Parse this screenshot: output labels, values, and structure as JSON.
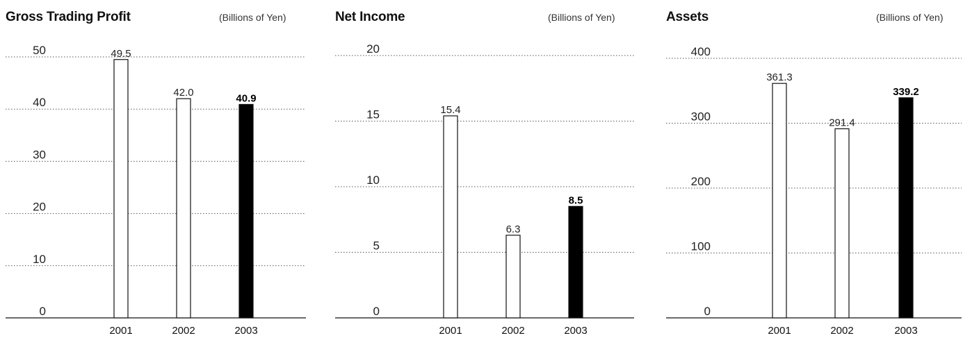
{
  "chart_data": [
    {
      "type": "bar",
      "title": "Gross Trading Profit",
      "unit": "(Billions of Yen)",
      "categories": [
        "2001",
        "2002",
        "2003"
      ],
      "values": [
        49.5,
        42.0,
        40.9
      ],
      "value_labels": [
        "49.5",
        "42.0",
        "40.9"
      ],
      "highlight": [
        false,
        false,
        true
      ],
      "yticks": [
        0,
        10,
        20,
        30,
        40,
        50
      ],
      "ylim": [
        0,
        50
      ],
      "grid": true
    },
    {
      "type": "bar",
      "title": "Net Income",
      "unit": "(Billions of Yen)",
      "categories": [
        "2001",
        "2002",
        "2003"
      ],
      "values": [
        15.4,
        6.3,
        8.5
      ],
      "value_labels": [
        "15.4",
        "6.3",
        "8.5"
      ],
      "highlight": [
        false,
        false,
        true
      ],
      "yticks": [
        0,
        5,
        10,
        15,
        20
      ],
      "ylim": [
        0,
        20
      ],
      "grid": true
    },
    {
      "type": "bar",
      "title": "Assets",
      "unit": "(Billions of Yen)",
      "categories": [
        "2001",
        "2002",
        "2003"
      ],
      "values": [
        361.3,
        291.4,
        339.2
      ],
      "value_labels": [
        "361.3",
        "291.4",
        "339.2"
      ],
      "highlight": [
        false,
        false,
        true
      ],
      "yticks": [
        0,
        100,
        200,
        300,
        400
      ],
      "ylim": [
        0,
        400
      ],
      "grid": true
    }
  ],
  "colors": {
    "bar_fill": "#ffffff",
    "bar_highlight": "#000000",
    "bar_stroke": "#111111",
    "grid": "#555555"
  }
}
